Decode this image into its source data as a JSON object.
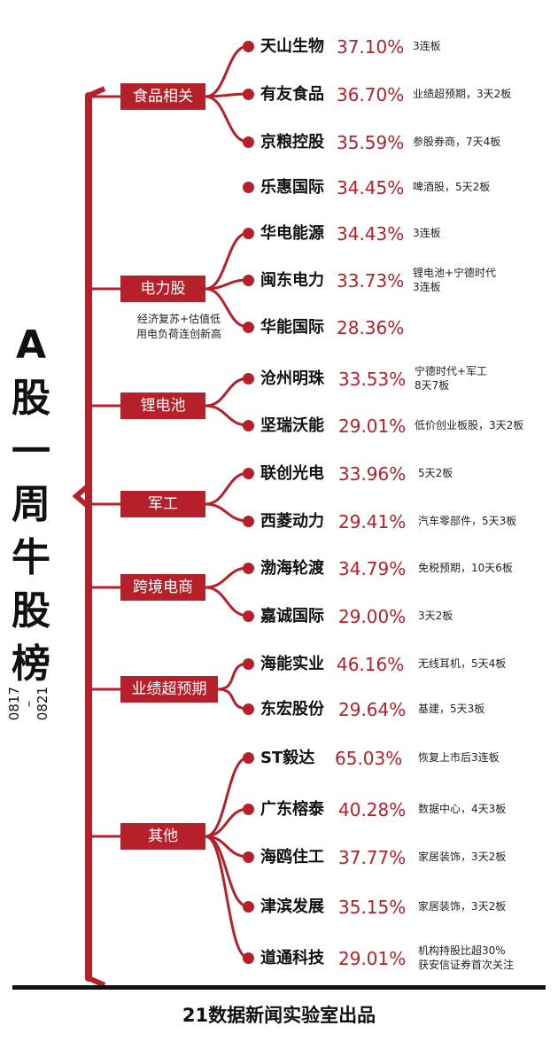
{
  "title_chars": [
    "A",
    "股",
    "一",
    "周",
    "牛",
    "股",
    "榜"
  ],
  "date_range": "0817\n–\n0821",
  "footer": "21数据新闻实验室出品",
  "accent_color": "#b5202a",
  "categories": [
    {
      "label": "食品相关",
      "note": ""
    },
    {
      "label": "电力股",
      "note": "经济复苏+估值低\n用电负荷连创新高"
    },
    {
      "label": "锂电池",
      "note": ""
    },
    {
      "label": "军工",
      "note": ""
    },
    {
      "label": "跨境电商",
      "note": ""
    },
    {
      "label": "业绩超预期",
      "note": ""
    },
    {
      "label": "其他",
      "note": ""
    }
  ],
  "stocks": [
    {
      "name": "天山生物",
      "pct": "37.10%",
      "note": "3连板"
    },
    {
      "name": "有友食品",
      "pct": "36.70%",
      "note": "业绩超预期，3天2板"
    },
    {
      "name": "京粮控股",
      "pct": "35.59%",
      "note": "参股券商，7天4板"
    },
    {
      "name": "乐惠国际",
      "pct": "34.45%",
      "note": "啤酒股，5天2板"
    },
    {
      "name": "华电能源",
      "pct": "34.43%",
      "note": "3连板"
    },
    {
      "name": "闽东电力",
      "pct": "33.73%",
      "note": "锂电池+宁德时代\n3连板"
    },
    {
      "name": "华能国际",
      "pct": "28.36%",
      "note": ""
    },
    {
      "name": "沧州明珠",
      "pct": "33.53%",
      "note": "宁德时代+军工\n8天7板"
    },
    {
      "name": "坚瑞沃能",
      "pct": "29.01%",
      "note": "低价创业板股，3天2板"
    },
    {
      "name": "联创光电",
      "pct": "33.96%",
      "note": "5天2板"
    },
    {
      "name": "西菱动力",
      "pct": "29.41%",
      "note": "汽车零部件，5天3板"
    },
    {
      "name": "渤海轮渡",
      "pct": "34.79%",
      "note": "免税预期，10天6板"
    },
    {
      "name": "嘉诚国际",
      "pct": "29.00%",
      "note": "3天2板"
    },
    {
      "name": "海能实业",
      "pct": "46.16%",
      "note": "无线耳机，5天4板"
    },
    {
      "name": "东宏股份",
      "pct": "29.64%",
      "note": "基建，5天3板"
    },
    {
      "name": "ST毅达",
      "pct": "65.03%",
      "note": "恢复上市后3连板"
    },
    {
      "name": "广东榕泰",
      "pct": "40.28%",
      "note": "数据中心，4天3板"
    },
    {
      "name": "海鸥住工",
      "pct": "37.77%",
      "note": "家居装饰，3天2板"
    },
    {
      "name": "津滨发展",
      "pct": "35.15%",
      "note": "家居装饰，3天2板"
    },
    {
      "name": "道通科技",
      "pct": "29.01%",
      "note": "机构持股比超30%\n获安信证券首次关注"
    }
  ]
}
